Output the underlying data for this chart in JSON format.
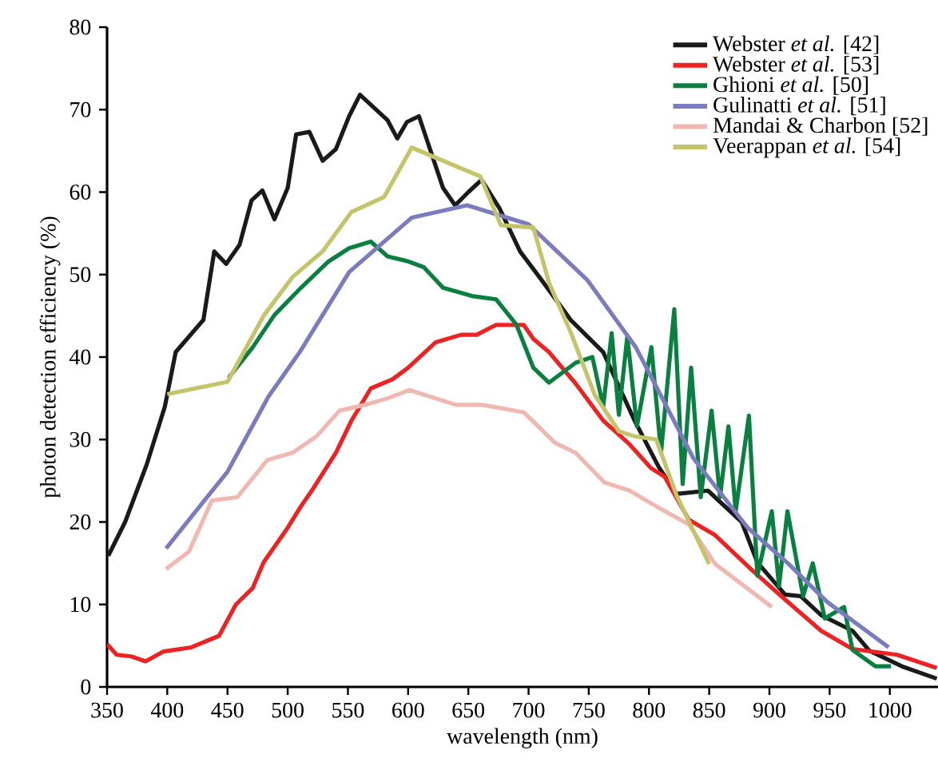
{
  "chart_data": {
    "type": "line",
    "xlabel": "wavelength (nm)",
    "ylabel": "photon detection efficiency (%)",
    "xlim": [
      350,
      1040
    ],
    "ylim": [
      0,
      80
    ],
    "xticks": [
      350,
      400,
      450,
      500,
      550,
      600,
      650,
      700,
      750,
      800,
      850,
      900,
      950,
      1000
    ],
    "yticks": [
      0,
      10,
      20,
      30,
      40,
      50,
      60,
      70,
      80
    ],
    "legend": "top right",
    "series": [
      {
        "name": "Webster *et al.* [42]",
        "color": "#1a1a1a",
        "x": [
          351,
          365,
          383,
          398,
          407,
          430,
          439,
          449,
          460,
          470,
          479,
          489,
          500,
          507,
          518,
          529,
          540,
          551,
          560,
          583,
          591,
          599,
          609,
          629,
          639,
          650,
          661,
          676,
          693,
          709,
          735,
          762,
          788,
          808,
          823,
          849,
          877,
          890,
          913,
          926,
          943,
          969,
          983,
          1010,
          1039
        ],
        "values": [
          15.9,
          20,
          27,
          34,
          40.6,
          44.5,
          52.8,
          51.3,
          53.6,
          59,
          60.2,
          56.7,
          60.5,
          67,
          67.3,
          63.8,
          65.2,
          69.2,
          71.8,
          68.7,
          66.5,
          68.5,
          69.2,
          60.5,
          58.4,
          60,
          61.5,
          58,
          52.8,
          49.7,
          44.5,
          40.6,
          32.3,
          26.7,
          23.4,
          23.8,
          20,
          15.1,
          11.2,
          11,
          8.7,
          6.8,
          4.4,
          2.5,
          1
        ]
      },
      {
        "name": "Webster *et al.* [53]",
        "color": "#ee2222",
        "x": [
          350,
          358,
          370,
          382,
          397,
          420,
          443,
          457,
          471,
          480,
          500,
          511,
          520,
          540,
          553,
          569,
          587,
          600,
          623,
          644,
          657,
          673,
          696,
          704,
          717,
          739,
          762,
          784,
          802,
          813,
          833,
          855,
          886,
          913,
          943,
          969,
          1006,
          1039
        ],
        "values": [
          5.2,
          3.9,
          3.7,
          3.1,
          4.3,
          4.8,
          6.2,
          10,
          12,
          15.1,
          19.3,
          21.9,
          23.8,
          28.4,
          32.3,
          36.2,
          37.3,
          38.7,
          41.8,
          42.7,
          42.7,
          43.9,
          43.9,
          42.2,
          40.6,
          36.8,
          32.3,
          29.4,
          26.5,
          25.5,
          20.3,
          18.4,
          14.1,
          10.6,
          6.8,
          4.6,
          3.9,
          2.3
        ]
      },
      {
        "name": "Ghioni *et al.* [50]",
        "color": "#0a8040",
        "x": [
          451,
          471,
          489,
          511,
          534,
          551,
          569,
          583,
          600,
          613,
          629,
          653,
          673,
          690,
          704,
          717,
          739,
          753,
          762,
          769,
          775,
          782,
          790,
          802,
          810,
          821,
          828,
          835,
          843,
          852,
          859,
          866,
          872,
          883,
          890,
          902,
          908,
          915,
          928,
          936,
          946,
          962,
          969,
          988,
          1001
        ],
        "values": [
          37.5,
          41.2,
          45.1,
          48.4,
          51.6,
          53.2,
          54,
          52.2,
          51.6,
          50.9,
          48.4,
          47.4,
          47,
          43.9,
          38.7,
          36.9,
          39.3,
          40,
          34,
          42.9,
          33,
          42.5,
          31.6,
          41.2,
          28.4,
          45.8,
          24.6,
          38.7,
          23,
          33.5,
          23,
          31.6,
          21.3,
          32.9,
          13.5,
          21.3,
          12.2,
          21.3,
          11,
          15,
          8.3,
          9.7,
          4.5,
          2.5,
          2.5
        ]
      },
      {
        "name": "Gulinatti *et al.* [51]",
        "color": "#7b7bbf",
        "x": [
          399,
          450,
          484,
          510,
          551,
          603,
          649,
          700,
          749,
          789,
          837,
          882,
          916,
          948,
          999
        ],
        "values": [
          16.8,
          26.1,
          35.2,
          40.6,
          50.3,
          56.9,
          58.4,
          56.1,
          49.3,
          41.2,
          27.7,
          19.3,
          14.9,
          10.3,
          4.8
        ]
      },
      {
        "name": "Mandai & Charbon [52]",
        "color": "#f0b8b0",
        "x": [
          399,
          418,
          437,
          458,
          483,
          504,
          524,
          543,
          564,
          583,
          601,
          640,
          662,
          696,
          722,
          739,
          763,
          784,
          806,
          833,
          855,
          902
        ],
        "values": [
          14.3,
          16.4,
          22.6,
          23,
          27.5,
          28.4,
          30.4,
          33.5,
          34.2,
          35,
          36,
          34.2,
          34.2,
          33.3,
          29.6,
          28.4,
          24.8,
          23.8,
          21.9,
          19.7,
          14.9,
          9.7
        ]
      },
      {
        "name": "Veerappan *et al.* [54]",
        "color": "#c4c46a",
        "x": [
          400,
          450,
          480,
          504,
          529,
          553,
          580,
          603,
          660,
          677,
          704,
          717,
          735,
          755,
          775,
          788,
          806,
          823,
          850
        ],
        "values": [
          35.5,
          37,
          45,
          49.7,
          52.8,
          57.6,
          59.4,
          65.4,
          61.9,
          56,
          55.7,
          49,
          43,
          35.4,
          31,
          30.4,
          30,
          23.2,
          14.9
        ]
      }
    ]
  }
}
